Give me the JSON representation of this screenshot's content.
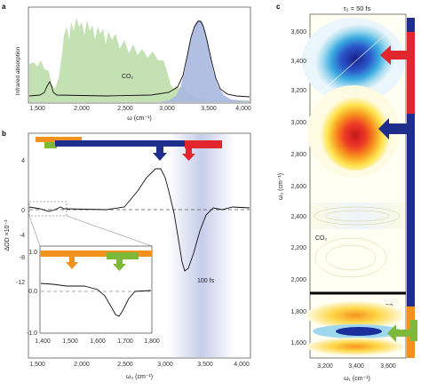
{
  "panel_labels": {
    "a": "a",
    "b": "b",
    "c": "c"
  },
  "panel_a": {
    "ylabel": "Infrared absorption",
    "xlabel": "ω (cm⁻¹)",
    "co2_label": "CO₂",
    "xticks": [
      "1,500",
      "2,000",
      "2,500",
      "3,000",
      "3,500",
      "4,000"
    ],
    "colors": {
      "atmosphere": "#b9dca5",
      "oh_band": "#a9b8e0",
      "line": "#111111"
    }
  },
  "panel_b": {
    "ylabel": "ΔOD ×10⁻³",
    "xlabel": "ω₃ (cm⁻¹)",
    "yticks": [
      "4",
      "0",
      "-4",
      "-8",
      "-12"
    ],
    "xticks": [
      "1,500",
      "2,000",
      "2,500",
      "3,000",
      "3,500",
      "4,000"
    ],
    "delay_label": "100 fs",
    "inset": {
      "yticks": [
        "1.0",
        "0.0",
        "-1.0"
      ],
      "xticks": [
        "1,400",
        "1,500",
        "1,600",
        "1,700",
        "1,800"
      ]
    },
    "colors": {
      "orange": "#f2921e",
      "green": "#7fb93a",
      "navy": "#1f2d8c",
      "red": "#e1262e",
      "shade": "#c5cdea"
    }
  },
  "panel_c": {
    "title": "τ₂ = 50 fs",
    "ylabel": "ω₃ (cm⁻¹)",
    "xlabel": "ω₁ (cm⁻¹)",
    "yticks": [
      "3,600",
      "3,400",
      "3,200",
      "3,000",
      "2,800",
      "2,600",
      "2,400",
      "2,200",
      "2,000",
      "1,800",
      "1,600"
    ],
    "xticks": [
      "3,200",
      "3,400",
      "3,600"
    ],
    "co2_label": "CO₂",
    "scale_label": "×50"
  },
  "chart_data": [
    {
      "type": "line",
      "panel": "a",
      "xlabel": "ω (cm⁻¹)",
      "ylabel": "Infrared absorption",
      "xlim": [
        1300,
        4000
      ],
      "series": [
        {
          "name": "",
          "x": [
            1300,
            1550,
            1640,
            1700,
            2000,
            2500,
            2900,
            3100,
            3250,
            3350,
            3420,
            3500,
            3600,
            3700,
            3800,
            4000
          ],
          "values": [
            0.02,
            0.06,
            0.3,
            0.05,
            0.03,
            0.04,
            0.07,
            0.2,
            0.6,
            0.92,
            0.98,
            0.8,
            0.35,
            0.08,
            0.03,
            0.02
          ]
        }
      ],
      "annotations": [
        "CO₂"
      ]
    },
    {
      "type": "line",
      "panel": "b",
      "xlabel": "ω₃ (cm⁻¹)",
      "ylabel": "ΔOD ×10⁻³",
      "xlim": [
        1400,
        4000
      ],
      "ylim": [
        -15,
        8
      ],
      "series": [
        {
          "name": "100 fs",
          "x": [
            1400,
            1500,
            1600,
            1650,
            1700,
            1800,
            2500,
            2800,
            2950,
            3050,
            3150,
            3250,
            3300,
            3400,
            3500,
            3650,
            3800,
            4000
          ],
          "values": [
            0.4,
            0.1,
            -0.6,
            -0.9,
            -0.3,
            0.1,
            0.1,
            3.5,
            6.8,
            5.0,
            1.0,
            -7.0,
            -10.5,
            -8.0,
            -2.0,
            0.3,
            0.1,
            0.0
          ]
        }
      ],
      "inset": {
        "xlim": [
          1400,
          1800
        ],
        "ylim": [
          -1.0,
          1.0
        ],
        "x": [
          1400,
          1450,
          1500,
          1550,
          1600,
          1640,
          1660,
          1680,
          1700,
          1750,
          1800
        ],
        "values": [
          0.4,
          0.3,
          0.2,
          0.05,
          -0.3,
          -0.7,
          -0.85,
          -0.6,
          -0.2,
          0.05,
          0.1
        ]
      }
    },
    {
      "type": "heatmap",
      "panel": "c",
      "title": "τ₂ = 50 fs",
      "xlabel": "ω₁ (cm⁻¹)",
      "ylabel": "ω₃ (cm⁻¹)",
      "xlim": [
        3100,
        3700
      ],
      "ylim": [
        1550,
        3700
      ],
      "features": [
        {
          "sign": "negative",
          "center": [
            3390,
            3430
          ]
        },
        {
          "sign": "positive",
          "center": [
            3400,
            2950
          ]
        },
        {
          "sign": "negative",
          "center": [
            3400,
            1660
          ]
        }
      ]
    }
  ]
}
